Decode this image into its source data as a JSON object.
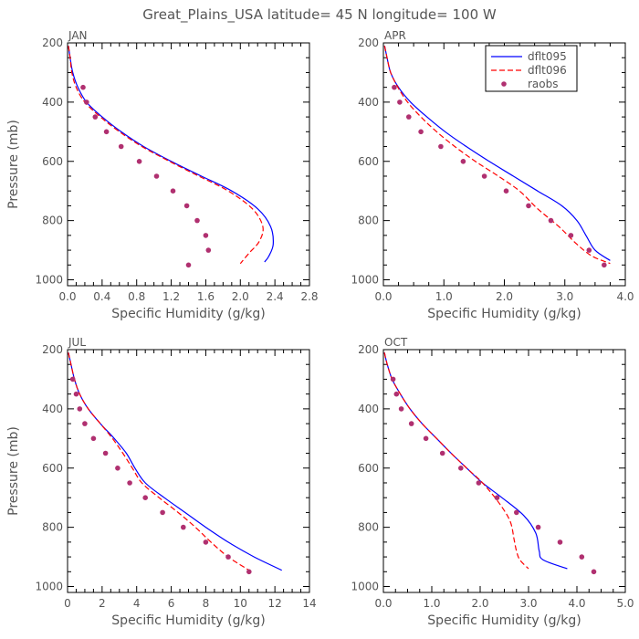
{
  "figure_title": "Great_Plains_USA   latitude= 45 N longitude= 100 W",
  "colors": {
    "dflt095": "#0000ff",
    "dflt096": "#ff0000",
    "raobs": "#b03070",
    "frame": "#000000",
    "text": "#555555"
  },
  "chart_data": [
    {
      "type": "line",
      "panel": "JAN",
      "xlabel": "Specific Humidity (g/kg)",
      "ylabel": "Pressure (mb)",
      "xlim": [
        0,
        2.8
      ],
      "ylim": [
        1020,
        200
      ],
      "xticks": [
        0,
        0.4,
        0.8,
        1.2,
        1.6,
        2.0,
        2.4,
        2.8
      ],
      "xtick_labels": [
        "0.0",
        "0.4",
        "0.8",
        "1.2",
        "1.6",
        "2.0",
        "2.4",
        "2.8"
      ],
      "yticks": [
        200,
        400,
        600,
        800,
        1000
      ],
      "ytick_labels": [
        "200",
        "400",
        "600",
        "800",
        "1000"
      ],
      "legend": false,
      "series": [
        {
          "name": "dflt095",
          "style": "solid",
          "x": [
            0.01,
            0.03,
            0.06,
            0.12,
            0.22,
            0.4,
            0.62,
            0.88,
            1.2,
            1.55,
            1.9,
            2.2,
            2.35,
            2.38,
            2.33,
            2.28
          ],
          "y": [
            210,
            250,
            300,
            350,
            400,
            450,
            500,
            550,
            600,
            650,
            700,
            760,
            820,
            880,
            920,
            940
          ]
        },
        {
          "name": "dflt096",
          "style": "dashed",
          "x": [
            0.01,
            0.03,
            0.05,
            0.1,
            0.2,
            0.38,
            0.6,
            0.86,
            1.18,
            1.52,
            1.86,
            2.14,
            2.26,
            2.22,
            2.1,
            2.0
          ],
          "y": [
            210,
            250,
            300,
            350,
            400,
            450,
            500,
            550,
            600,
            650,
            700,
            760,
            820,
            870,
            910,
            945
          ]
        },
        {
          "name": "raobs",
          "style": "dots",
          "x": [
            0.18,
            0.22,
            0.32,
            0.45,
            0.62,
            0.83,
            1.03,
            1.22,
            1.38,
            1.5,
            1.6,
            1.63,
            1.4
          ],
          "y": [
            350,
            400,
            450,
            500,
            550,
            600,
            650,
            700,
            750,
            800,
            850,
            900,
            950
          ]
        }
      ]
    },
    {
      "type": "line",
      "panel": "APR",
      "xlabel": "Specific Humidity (g/kg)",
      "ylabel": "",
      "xlim": [
        0,
        4.0
      ],
      "ylim": [
        1020,
        200
      ],
      "xticks": [
        0,
        1,
        2,
        3,
        4
      ],
      "xtick_labels": [
        "0.0",
        "1.0",
        "2.0",
        "3.0",
        "4.0"
      ],
      "yticks": [
        200,
        400,
        600,
        800,
        1000
      ],
      "ytick_labels": [
        "200",
        "400",
        "600",
        "800",
        "1000"
      ],
      "legend": true,
      "series": [
        {
          "name": "dflt095",
          "style": "solid",
          "x": [
            0.02,
            0.06,
            0.12,
            0.25,
            0.45,
            0.72,
            1.02,
            1.37,
            1.75,
            2.15,
            2.55,
            2.95,
            3.2,
            3.35,
            3.5,
            3.75
          ],
          "y": [
            210,
            250,
            300,
            350,
            400,
            450,
            500,
            550,
            600,
            650,
            700,
            750,
            800,
            850,
            900,
            935
          ]
        },
        {
          "name": "dflt096",
          "style": "dashed",
          "x": [
            0.02,
            0.06,
            0.12,
            0.24,
            0.4,
            0.62,
            0.88,
            1.18,
            1.52,
            1.9,
            2.25,
            2.55,
            2.9,
            3.2,
            3.45,
            3.75
          ],
          "y": [
            210,
            250,
            300,
            350,
            400,
            450,
            500,
            550,
            600,
            650,
            700,
            760,
            820,
            880,
            920,
            945
          ]
        },
        {
          "name": "raobs",
          "style": "dots",
          "x": [
            0.18,
            0.27,
            0.42,
            0.62,
            0.95,
            1.32,
            1.67,
            2.03,
            2.4,
            2.77,
            3.1,
            3.4,
            3.65
          ],
          "y": [
            350,
            400,
            450,
            500,
            550,
            600,
            650,
            700,
            750,
            800,
            850,
            900,
            950
          ]
        }
      ]
    },
    {
      "type": "line",
      "panel": "JUL",
      "xlabel": "Specific Humidity (g/kg)",
      "ylabel": "Pressure (mb)",
      "xlim": [
        0,
        14
      ],
      "ylim": [
        1020,
        200
      ],
      "xticks": [
        0,
        2,
        4,
        6,
        8,
        10,
        12,
        14
      ],
      "xtick_labels": [
        "0",
        "2",
        "4",
        "6",
        "8",
        "10",
        "12",
        "14"
      ],
      "yticks": [
        200,
        400,
        600,
        800,
        1000
      ],
      "ytick_labels": [
        "200",
        "400",
        "600",
        "800",
        "1000"
      ],
      "legend": false,
      "series": [
        {
          "name": "dflt095",
          "style": "solid",
          "x": [
            0.05,
            0.2,
            0.4,
            0.7,
            1.2,
            1.9,
            2.7,
            3.4,
            3.9,
            4.5,
            5.6,
            6.8,
            8.0,
            9.3,
            10.8,
            12.4
          ],
          "y": [
            210,
            250,
            300,
            350,
            400,
            450,
            500,
            550,
            600,
            650,
            700,
            750,
            800,
            850,
            900,
            945
          ]
        },
        {
          "name": "dflt096",
          "style": "dashed",
          "x": [
            0.05,
            0.2,
            0.4,
            0.7,
            1.2,
            1.9,
            2.6,
            3.2,
            3.75,
            4.3,
            5.3,
            6.4,
            7.4,
            8.3,
            9.3,
            10.5
          ],
          "y": [
            210,
            250,
            300,
            350,
            400,
            450,
            500,
            550,
            600,
            650,
            700,
            750,
            800,
            850,
            900,
            945
          ]
        },
        {
          "name": "raobs",
          "style": "dots",
          "x": [
            0.3,
            0.5,
            0.7,
            1.0,
            1.5,
            2.2,
            2.9,
            3.6,
            4.5,
            5.5,
            6.7,
            8.0,
            9.3,
            10.5
          ],
          "y": [
            300,
            350,
            400,
            450,
            500,
            550,
            600,
            650,
            700,
            750,
            800,
            850,
            900,
            950
          ]
        }
      ]
    },
    {
      "type": "line",
      "panel": "OCT",
      "xlabel": "Specific Humidity (g/kg)",
      "ylabel": "",
      "xlim": [
        0,
        5.0
      ],
      "ylim": [
        1020,
        200
      ],
      "xticks": [
        0,
        1,
        2,
        3,
        4,
        5
      ],
      "xtick_labels": [
        "0.0",
        "1.0",
        "2.0",
        "3.0",
        "4.0",
        "5.0"
      ],
      "yticks": [
        200,
        400,
        600,
        800,
        1000
      ],
      "ytick_labels": [
        "200",
        "400",
        "600",
        "800",
        "1000"
      ],
      "legend": false,
      "series": [
        {
          "name": "dflt095",
          "style": "solid",
          "x": [
            0.02,
            0.08,
            0.18,
            0.35,
            0.55,
            0.8,
            1.1,
            1.4,
            1.72,
            2.05,
            2.45,
            2.9,
            3.15,
            3.22,
            3.3,
            3.8
          ],
          "y": [
            210,
            250,
            300,
            350,
            400,
            450,
            500,
            550,
            600,
            650,
            700,
            760,
            820,
            880,
            910,
            940
          ]
        },
        {
          "name": "dflt096",
          "style": "dashed",
          "x": [
            0.02,
            0.08,
            0.18,
            0.35,
            0.55,
            0.8,
            1.1,
            1.4,
            1.72,
            2.05,
            2.4,
            2.62,
            2.7,
            2.75,
            2.82,
            3.0
          ],
          "y": [
            210,
            250,
            300,
            350,
            400,
            450,
            500,
            550,
            600,
            650,
            720,
            780,
            840,
            880,
            910,
            940
          ]
        },
        {
          "name": "raobs",
          "style": "dots",
          "x": [
            0.2,
            0.27,
            0.37,
            0.58,
            0.88,
            1.22,
            1.6,
            1.97,
            2.35,
            2.75,
            3.2,
            3.65,
            4.1,
            4.35
          ],
          "y": [
            300,
            350,
            400,
            450,
            500,
            550,
            600,
            650,
            700,
            750,
            800,
            850,
            900,
            950
          ]
        }
      ]
    }
  ]
}
